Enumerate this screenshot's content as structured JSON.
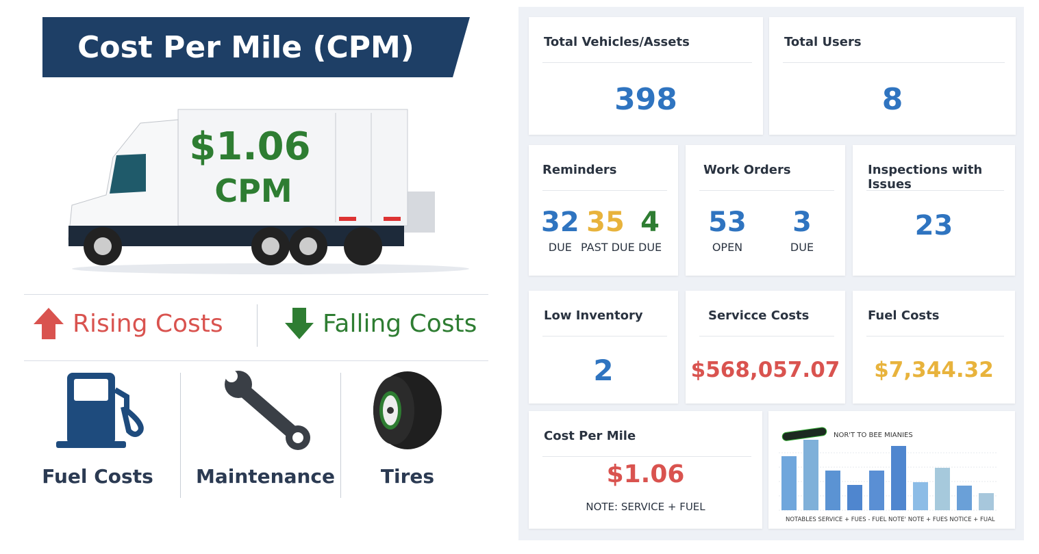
{
  "left": {
    "title": "Cost Per Mile (CPM)",
    "truck": {
      "value": "$1.06",
      "unit": "CPM"
    },
    "rising": {
      "label": "Rising Costs",
      "icon": "arrow-up-icon",
      "color": "#d9534f"
    },
    "falling": {
      "label": "Falling Costs",
      "icon": "arrow-down-icon",
      "color": "#2e7d32"
    },
    "categories": [
      {
        "label": "Fuel Costs",
        "icon": "fuel-pump-icon"
      },
      {
        "label": "Maintenance",
        "icon": "wrench-icon"
      },
      {
        "label": "Tires",
        "icon": "tire-icon"
      }
    ]
  },
  "cards": {
    "vehicles": {
      "title": "Total Vehicles/Assets",
      "value": "398"
    },
    "users": {
      "title": "Total Users",
      "value": "8"
    },
    "reminders": {
      "title": "Reminders",
      "stats": [
        {
          "value": "32",
          "label": "DUE"
        },
        {
          "value": "35",
          "label": "PAST DUE"
        },
        {
          "value": "4",
          "label": "DUE"
        }
      ]
    },
    "work_orders": {
      "title": "Work Orders",
      "stats": [
        {
          "value": "53",
          "label": "OPEN"
        },
        {
          "value": "3",
          "label": "DUE"
        }
      ]
    },
    "inspections": {
      "title": "Inspections with Issues",
      "value": "23"
    },
    "low_inventory": {
      "title": "Low Inventory",
      "value": "2"
    },
    "service_costs": {
      "title": "Servicce Costs",
      "value": "$568,057.07"
    },
    "fuel_costs": {
      "title": "Fuel Costs",
      "value": "$7,344.32"
    },
    "cpm": {
      "title": "Cost Per Mile",
      "value": "$1.06",
      "note": "NOTE: SERVICE + FUEL"
    }
  },
  "colors": {
    "blue": "#2f74c0",
    "yellow": "#e8b33c",
    "green": "#2e7d32",
    "red": "#d9534f",
    "navy": "#1e3f66"
  },
  "chart_data": {
    "type": "bar",
    "title": "NOR'T TO BEE MIANIES",
    "badge": "",
    "x_labels": "NOTABLES SERVICE + FUES - FUEL NOTE' NOTE + FUES NOTICE + FUAL",
    "values": [
      79,
      103,
      58,
      37,
      58,
      94,
      41,
      62,
      36,
      25
    ],
    "ylim": [
      0,
      105
    ],
    "grid": true
  }
}
